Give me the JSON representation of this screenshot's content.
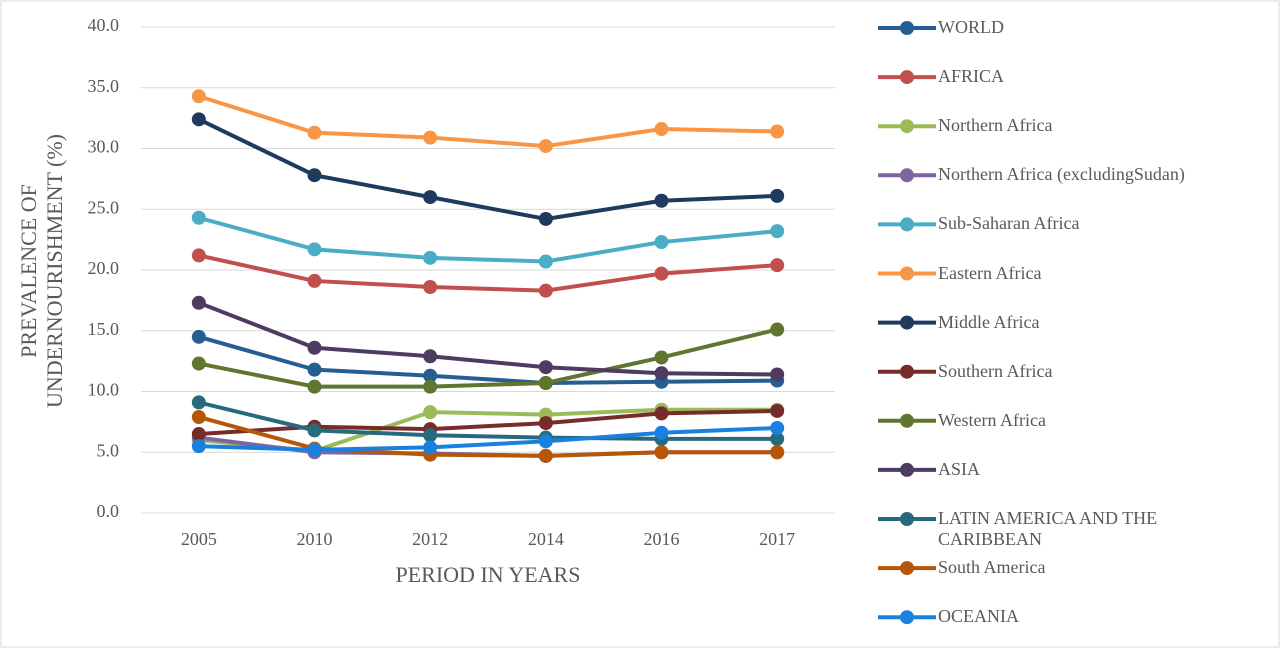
{
  "chart_data": {
    "type": "line",
    "x_label": "PERIOD IN YEARS",
    "y_label": "PREVALENCE OF UNDERNOURISHMENT (%)",
    "categories": [
      "2005",
      "2010",
      "2012",
      "2014",
      "2016",
      "2017"
    ],
    "ylim": [
      0,
      40
    ],
    "yticks": [
      {
        "value": 0,
        "label": "0.0"
      },
      {
        "value": 5,
        "label": "5.0"
      },
      {
        "value": 10,
        "label": "10.0"
      },
      {
        "value": 15,
        "label": "15.0"
      },
      {
        "value": 20,
        "label": "20.0"
      },
      {
        "value": 25,
        "label": "25.0"
      },
      {
        "value": 30,
        "label": "30.0"
      },
      {
        "value": 35,
        "label": "35.0"
      },
      {
        "value": 40,
        "label": "40.0"
      }
    ],
    "grid": true,
    "legend": "right",
    "series": [
      {
        "name": "WORLD",
        "color": "#255e91",
        "values": [
          14.5,
          11.8,
          11.3,
          10.7,
          10.8,
          10.9
        ]
      },
      {
        "name": "AFRICA",
        "color": "#c0504d",
        "values": [
          21.2,
          19.1,
          18.6,
          18.3,
          19.7,
          20.4
        ]
      },
      {
        "name": "Northern Africa",
        "color": "#9bbb59",
        "values": [
          6.0,
          5.1,
          8.3,
          8.1,
          8.5,
          8.5
        ]
      },
      {
        "name": "Northern Africa (excludingSudan)",
        "color": "#8064a2",
        "values": [
          6.2,
          5.0,
          4.9,
          4.7,
          5.0,
          5.0
        ]
      },
      {
        "name": "Sub-Saharan Africa",
        "color": "#4bacc6",
        "values": [
          24.3,
          21.7,
          21.0,
          20.7,
          22.3,
          23.2
        ]
      },
      {
        "name": "Eastern Africa",
        "color": "#f79646",
        "values": [
          34.3,
          31.3,
          30.9,
          30.2,
          31.6,
          31.4
        ]
      },
      {
        "name": "Middle Africa",
        "color": "#1f3a5f",
        "values": [
          32.4,
          27.8,
          26.0,
          24.2,
          25.7,
          26.1
        ]
      },
      {
        "name": "Southern Africa",
        "color": "#772c2a",
        "values": [
          6.5,
          7.1,
          6.9,
          7.4,
          8.2,
          8.4
        ]
      },
      {
        "name": "Western Africa",
        "color": "#5f7530",
        "values": [
          12.3,
          10.4,
          10.4,
          10.7,
          12.8,
          15.1
        ]
      },
      {
        "name": "ASIA",
        "color": "#4d3b62",
        "values": [
          17.3,
          13.6,
          12.9,
          12.0,
          11.5,
          11.4
        ]
      },
      {
        "name": "LATIN AMERICA AND THE CARIBBEAN",
        "color": "#276a7c",
        "values": [
          9.1,
          6.8,
          6.4,
          6.2,
          6.1,
          6.1
        ]
      },
      {
        "name": "South America",
        "color": "#b65708",
        "values": [
          7.9,
          5.3,
          4.8,
          4.7,
          5.0,
          5.0
        ]
      },
      {
        "name": "OCEANIA",
        "color": "#1a80e0",
        "values": [
          5.5,
          5.2,
          5.4,
          5.9,
          6.6,
          7.0
        ]
      }
    ]
  }
}
